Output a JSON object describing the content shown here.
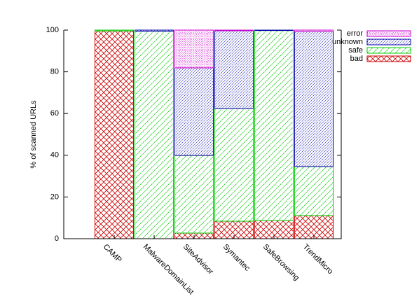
{
  "chart_data": {
    "type": "stacked_bar",
    "y_label": "% of scanned URLs",
    "categories": [
      "CAMP",
      "MalwareDomainList",
      "SiteAdvisor",
      "Symantec",
      "SafeBrowsing",
      "TrendMicro"
    ],
    "series": [
      {
        "name": "bad",
        "color": "#cc0000",
        "values": [
          99.6,
          0,
          2.7,
          8.4,
          8.7,
          11.1
        ]
      },
      {
        "name": "safe",
        "color": "#00cc00",
        "values": [
          0.4,
          99.5,
          37.2,
          54,
          91.1,
          23.5
        ]
      },
      {
        "name": "unknown",
        "color": "#0000aa",
        "values": [
          0,
          0.5,
          42,
          37.3,
          0.2,
          64.7
        ]
      },
      {
        "name": "error",
        "color": "#cc00cc",
        "values": [
          0,
          0,
          18.1,
          0.3,
          0,
          0.7
        ]
      }
    ],
    "ylim": [
      0,
      100
    ],
    "yticks": [
      0,
      20,
      40,
      60,
      80,
      100
    ],
    "legend": "top-right"
  }
}
